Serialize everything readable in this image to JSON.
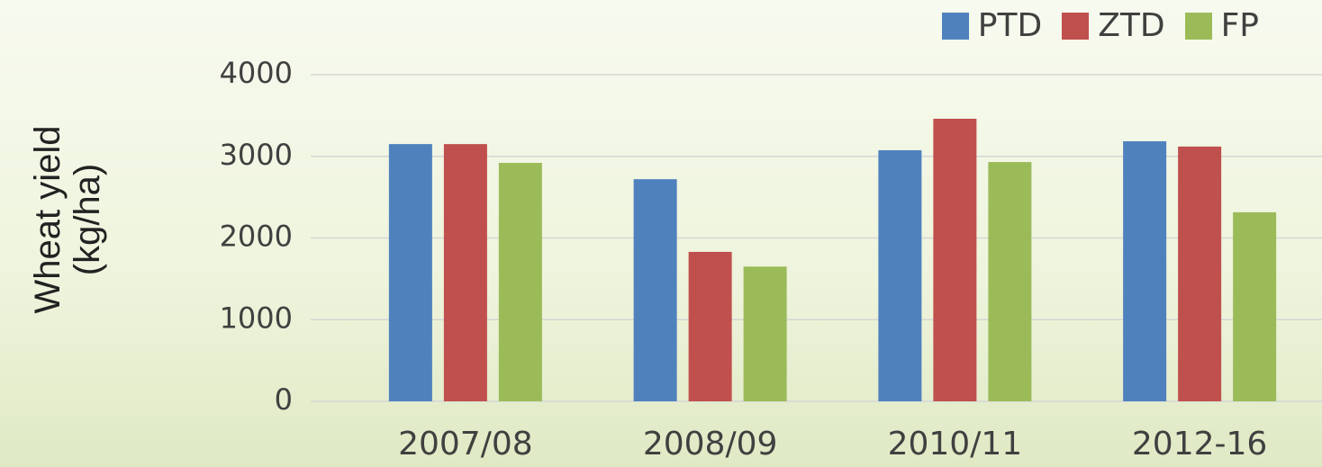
{
  "chart_data": {
    "type": "bar",
    "y_label": "Wheat yield (kg/ha)",
    "categories": [
      "2007/08",
      "2008/09",
      "2010/11",
      "2012-16"
    ],
    "series": [
      {
        "name": "PTD",
        "color": "#4f81bd",
        "values": [
          3150,
          2720,
          3075,
          3185
        ]
      },
      {
        "name": "ZTD",
        "color": "#c0504d",
        "values": [
          3150,
          1830,
          3460,
          3120
        ]
      },
      {
        "name": "FP",
        "color": "#9bbb59",
        "values": [
          2920,
          1650,
          2930,
          2315
        ]
      }
    ],
    "ylim": [
      0,
      4000
    ],
    "yticks": [
      0,
      1000,
      2000,
      3000,
      4000
    ],
    "grid": true,
    "legend": "top-right"
  }
}
